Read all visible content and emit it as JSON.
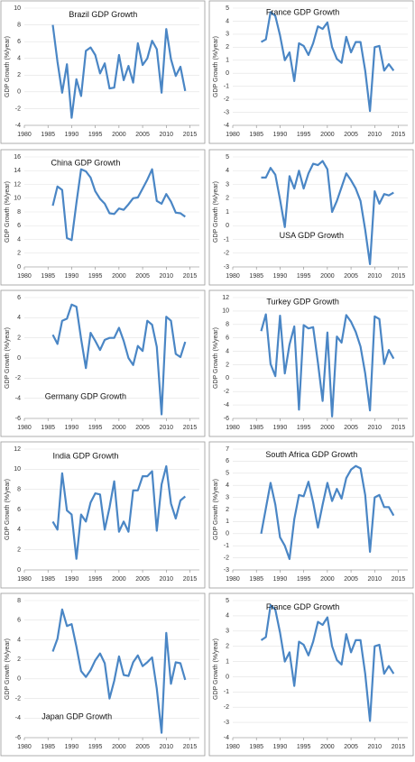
{
  "chart_data": [
    {
      "type": "line",
      "title": "Brazil GDP Growth",
      "y_label": "GDP Growth (%/year)",
      "color": "#4a86c5",
      "grid": true,
      "x": [
        1986,
        1987,
        1988,
        1989,
        1990,
        1991,
        1992,
        1993,
        1994,
        1995,
        1996,
        1997,
        1998,
        1999,
        2000,
        2001,
        2002,
        2003,
        2004,
        2005,
        2006,
        2007,
        2008,
        2009,
        2010,
        2011,
        2012,
        2013,
        2014
      ],
      "values": [
        8.0,
        3.6,
        -0.1,
        3.3,
        -3.1,
        1.5,
        -0.5,
        4.9,
        5.3,
        4.4,
        2.2,
        3.4,
        0.4,
        0.5,
        4.4,
        1.4,
        3.1,
        1.1,
        5.8,
        3.2,
        4.0,
        6.1,
        5.1,
        -0.1,
        7.5,
        3.9,
        1.9,
        3.0,
        0.1
      ],
      "xlim": [
        1980,
        2017
      ],
      "xticks": [
        1980,
        1985,
        1990,
        1995,
        2000,
        2005,
        2010,
        2015
      ],
      "ylim": [
        -4,
        10
      ],
      "yticks": [
        -4,
        -2,
        0,
        2,
        4,
        6,
        8,
        10
      ]
    },
    {
      "type": "line",
      "title": "France GDP Growth",
      "y_label": "GDP Growth (%/year)",
      "color": "#4a86c5",
      "grid": true,
      "x": [
        1986,
        1987,
        1988,
        1989,
        1990,
        1991,
        1992,
        1993,
        1994,
        1995,
        1996,
        1997,
        1998,
        1999,
        2000,
        2001,
        2002,
        2003,
        2004,
        2005,
        2006,
        2007,
        2008,
        2009,
        2010,
        2011,
        2012,
        2013,
        2014
      ],
      "values": [
        2.4,
        2.6,
        4.7,
        4.4,
        2.9,
        1.0,
        1.6,
        -0.6,
        2.3,
        2.1,
        1.4,
        2.3,
        3.6,
        3.4,
        3.9,
        2.0,
        1.1,
        0.8,
        2.8,
        1.6,
        2.4,
        2.4,
        0.2,
        -2.9,
        2.0,
        2.1,
        0.2,
        0.7,
        0.2
      ],
      "xlim": [
        1980,
        2017
      ],
      "xticks": [
        1980,
        1985,
        1990,
        1995,
        2000,
        2005,
        2010,
        2015
      ],
      "ylim": [
        -4,
        5
      ],
      "yticks": [
        -4,
        -3,
        -2,
        -1,
        0,
        1,
        2,
        3,
        4,
        5
      ]
    },
    {
      "type": "line",
      "title": "China GDP Growth",
      "y_label": "GDP Growth (%/year)",
      "color": "#4a86c5",
      "grid": true,
      "x": [
        1986,
        1987,
        1988,
        1989,
        1990,
        1991,
        1992,
        1993,
        1994,
        1995,
        1996,
        1997,
        1998,
        1999,
        2000,
        2001,
        2002,
        2003,
        2004,
        2005,
        2006,
        2007,
        2008,
        2009,
        2010,
        2011,
        2012,
        2013,
        2014
      ],
      "values": [
        8.9,
        11.7,
        11.2,
        4.2,
        3.9,
        9.3,
        14.2,
        13.9,
        13.0,
        11.0,
        9.9,
        9.2,
        7.8,
        7.7,
        8.5,
        8.3,
        9.1,
        10.0,
        10.1,
        11.4,
        12.7,
        14.2,
        9.6,
        9.2,
        10.6,
        9.5,
        7.9,
        7.8,
        7.3
      ],
      "xlim": [
        1980,
        2017
      ],
      "xticks": [
        1980,
        1985,
        1990,
        1995,
        2000,
        2005,
        2010,
        2015
      ],
      "ylim": [
        0,
        16
      ],
      "yticks": [
        0,
        2,
        4,
        6,
        8,
        10,
        12,
        14,
        16
      ]
    },
    {
      "type": "line",
      "title": "USA GDP Growth",
      "y_label": "GDP Growth (%/year)",
      "color": "#4a86c5",
      "grid": true,
      "x": [
        1986,
        1987,
        1988,
        1989,
        1990,
        1991,
        1992,
        1993,
        1994,
        1995,
        1996,
        1997,
        1998,
        1999,
        2000,
        2001,
        2002,
        2003,
        2004,
        2005,
        2006,
        2007,
        2008,
        2009,
        2010,
        2011,
        2012,
        2013,
        2014
      ],
      "values": [
        3.5,
        3.5,
        4.2,
        3.7,
        1.9,
        -0.1,
        3.6,
        2.7,
        4.0,
        2.7,
        3.8,
        4.5,
        4.4,
        4.7,
        4.1,
        1.0,
        1.8,
        2.8,
        3.8,
        3.3,
        2.7,
        1.8,
        -0.3,
        -2.8,
        2.5,
        1.6,
        2.3,
        2.2,
        2.4
      ],
      "xlim": [
        1980,
        2017
      ],
      "xticks": [
        1980,
        1985,
        1990,
        1995,
        2000,
        2005,
        2010,
        2015
      ],
      "ylim": [
        -3,
        5
      ],
      "yticks": [
        -3,
        -2,
        -1,
        0,
        1,
        2,
        3,
        4,
        5
      ]
    },
    {
      "type": "line",
      "title": "Germany GDP Growth",
      "y_label": "GDP Growth (%/year)",
      "color": "#4a86c5",
      "grid": true,
      "x": [
        1986,
        1987,
        1988,
        1989,
        1990,
        1991,
        1992,
        1993,
        1994,
        1995,
        1996,
        1997,
        1998,
        1999,
        2000,
        2001,
        2002,
        2003,
        2004,
        2005,
        2006,
        2007,
        2008,
        2009,
        2010,
        2011,
        2012,
        2013,
        2014
      ],
      "values": [
        2.3,
        1.4,
        3.7,
        3.9,
        5.3,
        5.1,
        1.9,
        -1.0,
        2.5,
        1.7,
        0.8,
        1.8,
        2.0,
        2.0,
        3.0,
        1.7,
        0.0,
        -0.7,
        1.2,
        0.7,
        3.7,
        3.3,
        1.1,
        -5.6,
        4.1,
        3.7,
        0.4,
        0.1,
        1.6
      ],
      "xlim": [
        1980,
        2017
      ],
      "xticks": [
        1980,
        1985,
        1990,
        1995,
        2000,
        2005,
        2010,
        2015
      ],
      "ylim": [
        -6,
        6
      ],
      "yticks": [
        -6,
        -4,
        -2,
        0,
        2,
        4,
        6
      ]
    },
    {
      "type": "line",
      "title": "Turkey GDP Growth",
      "y_label": "GDP Growth (%/year)",
      "color": "#4a86c5",
      "grid": true,
      "x": [
        1986,
        1987,
        1988,
        1989,
        1990,
        1991,
        1992,
        1993,
        1994,
        1995,
        1996,
        1997,
        1998,
        1999,
        2000,
        2001,
        2002,
        2003,
        2004,
        2005,
        2006,
        2007,
        2008,
        2009,
        2010,
        2011,
        2012,
        2013,
        2014
      ],
      "values": [
        7.0,
        9.5,
        2.1,
        0.3,
        9.3,
        0.7,
        5.0,
        7.7,
        -4.7,
        7.9,
        7.4,
        7.6,
        2.3,
        -3.4,
        6.8,
        -5.7,
        6.2,
        5.3,
        9.4,
        8.4,
        6.9,
        4.7,
        0.7,
        -4.8,
        9.2,
        8.8,
        2.1,
        4.2,
        2.9
      ],
      "xlim": [
        1980,
        2017
      ],
      "xticks": [
        1980,
        1985,
        1990,
        1995,
        2000,
        2005,
        2010,
        2015
      ],
      "ylim": [
        -6,
        12
      ],
      "yticks": [
        -6,
        -4,
        -2,
        0,
        2,
        4,
        6,
        8,
        10,
        12
      ]
    },
    {
      "type": "line",
      "title": "India GDP Growth",
      "y_label": "GDP Growth (%/year)",
      "color": "#4a86c5",
      "grid": true,
      "x": [
        1986,
        1987,
        1988,
        1989,
        1990,
        1991,
        1992,
        1993,
        1994,
        1995,
        1996,
        1997,
        1998,
        1999,
        2000,
        2001,
        2002,
        2003,
        2004,
        2005,
        2006,
        2007,
        2008,
        2009,
        2010,
        2011,
        2012,
        2013,
        2014
      ],
      "values": [
        4.8,
        4.0,
        9.6,
        5.9,
        5.5,
        1.1,
        5.5,
        4.8,
        6.7,
        7.6,
        7.5,
        4.0,
        6.2,
        8.8,
        3.8,
        4.8,
        3.8,
        7.9,
        7.9,
        9.3,
        9.3,
        9.8,
        3.9,
        8.5,
        10.3,
        6.6,
        5.1,
        6.9,
        7.3
      ],
      "xlim": [
        1980,
        2017
      ],
      "xticks": [
        1980,
        1985,
        1990,
        1995,
        2000,
        2005,
        2010,
        2015
      ],
      "ylim": [
        0,
        12
      ],
      "yticks": [
        0,
        2,
        4,
        6,
        8,
        10,
        12
      ]
    },
    {
      "type": "line",
      "title": "South Africa GDP Growth",
      "y_label": "GDP Growth (%/year)",
      "color": "#4a86c5",
      "grid": true,
      "x": [
        1986,
        1987,
        1988,
        1989,
        1990,
        1991,
        1992,
        1993,
        1994,
        1995,
        1996,
        1997,
        1998,
        1999,
        2000,
        2001,
        2002,
        2003,
        2004,
        2005,
        2006,
        2007,
        2008,
        2009,
        2010,
        2011,
        2012,
        2013,
        2014
      ],
      "values": [
        0.0,
        2.1,
        4.2,
        2.4,
        -0.3,
        -1.0,
        -2.1,
        1.2,
        3.2,
        3.1,
        4.3,
        2.6,
        0.5,
        2.4,
        4.2,
        2.7,
        3.7,
        2.9,
        4.6,
        5.3,
        5.6,
        5.4,
        3.2,
        -1.5,
        3.0,
        3.2,
        2.2,
        2.2,
        1.5
      ],
      "xlim": [
        1980,
        2017
      ],
      "xticks": [
        1980,
        1985,
        1990,
        1995,
        2000,
        2005,
        2010,
        2015
      ],
      "ylim": [
        -3,
        7
      ],
      "yticks": [
        -3,
        -2,
        -1,
        0,
        1,
        2,
        3,
        4,
        5,
        6,
        7
      ]
    },
    {
      "type": "line",
      "title": "Japan GDP Growth",
      "y_label": "GDP Growth (%/year)",
      "color": "#4a86c5",
      "grid": true,
      "x": [
        1986,
        1987,
        1988,
        1989,
        1990,
        1991,
        1992,
        1993,
        1994,
        1995,
        1996,
        1997,
        1998,
        1999,
        2000,
        2001,
        2002,
        2003,
        2004,
        2005,
        2006,
        2007,
        2008,
        2009,
        2010,
        2011,
        2012,
        2013,
        2014
      ],
      "values": [
        2.8,
        4.1,
        7.1,
        5.4,
        5.6,
        3.3,
        0.8,
        0.2,
        0.9,
        1.9,
        2.6,
        1.6,
        -2.0,
        -0.2,
        2.3,
        0.4,
        0.3,
        1.7,
        2.4,
        1.3,
        1.7,
        2.2,
        -1.0,
        -5.5,
        4.7,
        -0.5,
        1.7,
        1.6,
        -0.1
      ],
      "xlim": [
        1980,
        2017
      ],
      "xticks": [
        1980,
        1985,
        1990,
        1995,
        2000,
        2005,
        2010,
        2015
      ],
      "ylim": [
        -6,
        8
      ],
      "yticks": [
        -6,
        -4,
        -2,
        0,
        2,
        4,
        6,
        8
      ]
    },
    {
      "type": "line",
      "title": "France GDP Growth",
      "y_label": "GDP Growth (%/year)",
      "color": "#4a86c5",
      "grid": true,
      "x": [
        1986,
        1987,
        1988,
        1989,
        1990,
        1991,
        1992,
        1993,
        1994,
        1995,
        1996,
        1997,
        1998,
        1999,
        2000,
        2001,
        2002,
        2003,
        2004,
        2005,
        2006,
        2007,
        2008,
        2009,
        2010,
        2011,
        2012,
        2013,
        2014
      ],
      "values": [
        2.4,
        2.6,
        4.7,
        4.4,
        2.9,
        1.0,
        1.6,
        -0.6,
        2.3,
        2.1,
        1.4,
        2.3,
        3.6,
        3.4,
        3.9,
        2.0,
        1.1,
        0.8,
        2.8,
        1.6,
        2.4,
        2.4,
        0.2,
        -2.9,
        2.0,
        2.1,
        0.2,
        0.7,
        0.2
      ],
      "xlim": [
        1980,
        2017
      ],
      "xticks": [
        1980,
        1985,
        1990,
        1995,
        2000,
        2005,
        2010,
        2015
      ],
      "ylim": [
        -4,
        5
      ],
      "yticks": [
        -4,
        -3,
        -2,
        -1,
        0,
        1,
        2,
        3,
        4,
        5
      ]
    }
  ]
}
